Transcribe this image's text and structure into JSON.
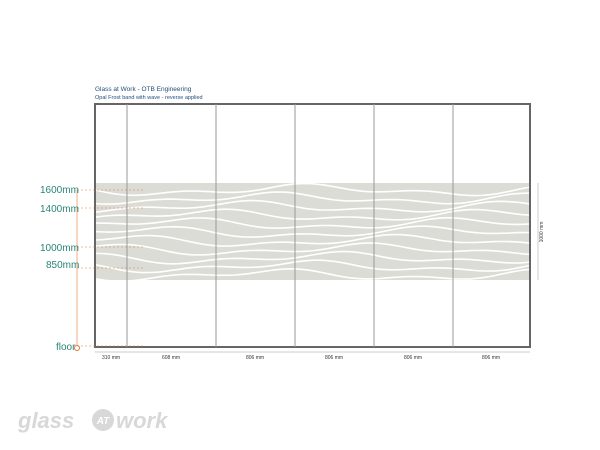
{
  "header": {
    "title": "Glass at Work - OTB Engineering",
    "subtitle": "Opal Frost band with wave - reverse applied"
  },
  "heights": [
    "1600mm",
    "1400mm",
    "1000mm",
    "850mm"
  ],
  "floor": "floor",
  "widths": [
    "310 mm",
    "608 mm",
    "806 mm",
    "806 mm",
    "806 mm",
    "806 mm"
  ],
  "band_height": "1000 mm",
  "logo": {
    "left": "glass",
    "mid": "AT",
    "right": "work"
  }
}
